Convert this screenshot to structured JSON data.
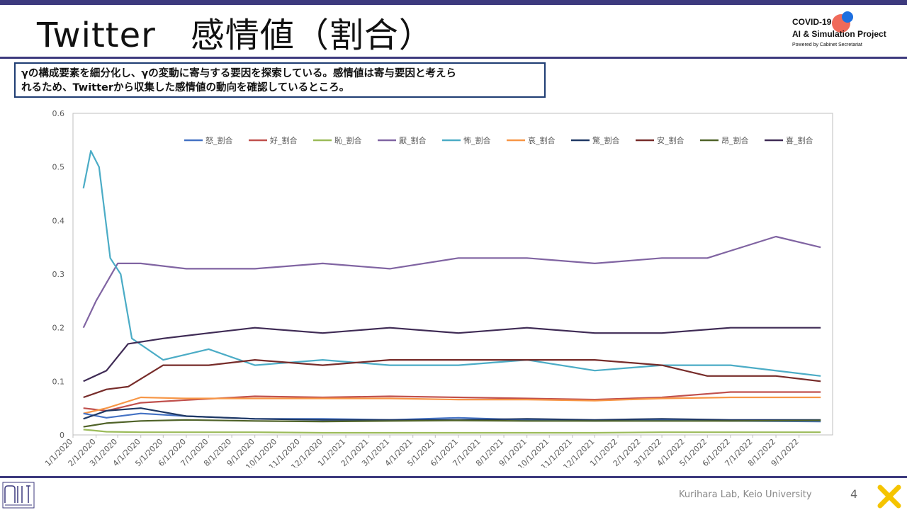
{
  "slide": {
    "title": "Twitter　感情値（割合）",
    "logo": {
      "line1": "COVID-19",
      "line2": "AI & Simulation Project",
      "line3": "Powered by Cabinet Secretariat"
    },
    "callout_line1": "γの構成要素を細分化し、γの変動に寄与する要因を探索している。感情値は寄与要因と考えら",
    "callout_line2": "れるため、Twitterから収集した感情値の動向を確認しているところ。",
    "footer": "Kurihara Lab, Keio University",
    "page_number": "4"
  },
  "colors": {
    "frame": "#3d3a7e",
    "callout_border": "#1f3d73"
  },
  "icons": [
    "lab-logo-icon",
    "corner-x-icon"
  ],
  "chart_data": {
    "type": "line",
    "ylim": [
      0,
      0.6
    ],
    "yticks": [
      "0",
      "0.1",
      "0.2",
      "0.3",
      "0.4",
      "0.5",
      "0.6"
    ],
    "x_ticks": [
      "1/1/2020",
      "2/1/2020",
      "3/1/2020",
      "4/1/2020",
      "5/1/2020",
      "6/1/2020",
      "7/1/2020",
      "8/1/2020",
      "9/1/2020",
      "10/1/2020",
      "11/1/2020",
      "12/1/2020",
      "1/1/2021",
      "2/1/2021",
      "3/1/2021",
      "4/1/2021",
      "5/1/2021",
      "6/1/2021",
      "7/1/2021",
      "8/1/2021",
      "9/1/2021",
      "10/1/2021",
      "11/1/2021",
      "12/1/2021",
      "1/1/2022",
      "2/1/2022",
      "3/1/2022",
      "4/1/2022",
      "5/1/2022",
      "6/1/2022",
      "7/1/2022",
      "8/1/2022",
      "9/1/2022"
    ],
    "legend_position": "top",
    "grid": false,
    "series": [
      {
        "name": "怒_割合",
        "color": "#4472c4",
        "x": [
          "2020-01-15",
          "2020-02-15",
          "2020-04-01",
          "2020-06-01",
          "2020-09-01",
          "2020-12-01",
          "2021-03-01",
          "2021-06-01",
          "2021-09-01",
          "2021-12-01",
          "2022-03-01",
          "2022-06-01",
          "2022-09-30"
        ],
        "y": [
          0.04,
          0.032,
          0.04,
          0.035,
          0.03,
          0.03,
          0.028,
          0.032,
          0.028,
          0.026,
          0.028,
          0.026,
          0.025
        ]
      },
      {
        "name": "好_割合",
        "color": "#c0504d",
        "x": [
          "2020-01-15",
          "2020-02-15",
          "2020-04-01",
          "2020-06-01",
          "2020-09-01",
          "2020-12-01",
          "2021-03-01",
          "2021-06-01",
          "2021-09-01",
          "2021-12-01",
          "2022-03-01",
          "2022-06-01",
          "2022-09-30"
        ],
        "y": [
          0.05,
          0.045,
          0.06,
          0.065,
          0.072,
          0.07,
          0.072,
          0.07,
          0.068,
          0.066,
          0.07,
          0.08,
          0.08
        ]
      },
      {
        "name": "恥_割合",
        "color": "#9bbb59",
        "x": [
          "2020-01-15",
          "2020-02-15",
          "2020-04-01",
          "2020-06-01",
          "2020-09-01",
          "2020-12-01",
          "2021-03-01",
          "2021-06-01",
          "2021-09-01",
          "2021-12-01",
          "2022-03-01",
          "2022-06-01",
          "2022-09-30"
        ],
        "y": [
          0.01,
          0.006,
          0.005,
          0.005,
          0.005,
          0.004,
          0.004,
          0.004,
          0.004,
          0.004,
          0.005,
          0.005,
          0.005
        ]
      },
      {
        "name": "厭_割合",
        "color": "#8064a2",
        "x": [
          "2020-01-15",
          "2020-02-01",
          "2020-03-01",
          "2020-04-01",
          "2020-06-01",
          "2020-09-01",
          "2020-12-01",
          "2021-03-01",
          "2021-06-01",
          "2021-09-01",
          "2021-12-01",
          "2022-03-01",
          "2022-05-01",
          "2022-08-01",
          "2022-09-30"
        ],
        "y": [
          0.2,
          0.25,
          0.32,
          0.32,
          0.31,
          0.31,
          0.32,
          0.31,
          0.33,
          0.33,
          0.32,
          0.33,
          0.33,
          0.37,
          0.35
        ]
      },
      {
        "name": "怖_割合",
        "color": "#4bacc6",
        "x": [
          "2020-01-15",
          "2020-01-25",
          "2020-02-05",
          "2020-02-20",
          "2020-03-05",
          "2020-03-20",
          "2020-05-01",
          "2020-07-01",
          "2020-09-01",
          "2020-12-01",
          "2021-03-01",
          "2021-06-01",
          "2021-09-01",
          "2021-12-01",
          "2022-03-01",
          "2022-06-01",
          "2022-09-30"
        ],
        "y": [
          0.46,
          0.53,
          0.5,
          0.33,
          0.3,
          0.18,
          0.14,
          0.16,
          0.13,
          0.14,
          0.13,
          0.13,
          0.14,
          0.12,
          0.13,
          0.13,
          0.11
        ]
      },
      {
        "name": "哀_割合",
        "color": "#f79646",
        "x": [
          "2020-01-15",
          "2020-02-15",
          "2020-04-01",
          "2020-06-01",
          "2020-09-01",
          "2020-12-01",
          "2021-03-01",
          "2021-06-01",
          "2021-09-01",
          "2021-12-01",
          "2022-03-01",
          "2022-06-01",
          "2022-09-30"
        ],
        "y": [
          0.04,
          0.05,
          0.07,
          0.068,
          0.068,
          0.068,
          0.068,
          0.066,
          0.066,
          0.064,
          0.068,
          0.07,
          0.07
        ]
      },
      {
        "name": "驚_割合",
        "color": "#1f3864",
        "x": [
          "2020-01-15",
          "2020-02-15",
          "2020-04-01",
          "2020-06-01",
          "2020-09-01",
          "2020-12-01",
          "2021-03-01",
          "2021-06-01",
          "2021-09-01",
          "2021-12-01",
          "2022-03-01",
          "2022-06-01",
          "2022-09-30"
        ],
        "y": [
          0.03,
          0.045,
          0.05,
          0.035,
          0.03,
          0.028,
          0.028,
          0.028,
          0.03,
          0.028,
          0.03,
          0.028,
          0.028
        ]
      },
      {
        "name": "安_割合",
        "color": "#772c2a",
        "x": [
          "2020-01-15",
          "2020-02-15",
          "2020-03-15",
          "2020-05-01",
          "2020-07-01",
          "2020-09-01",
          "2020-12-01",
          "2021-03-01",
          "2021-06-01",
          "2021-09-01",
          "2021-12-01",
          "2022-03-01",
          "2022-05-01",
          "2022-08-01",
          "2022-09-30"
        ],
        "y": [
          0.07,
          0.085,
          0.09,
          0.13,
          0.13,
          0.14,
          0.13,
          0.14,
          0.14,
          0.14,
          0.14,
          0.13,
          0.11,
          0.11,
          0.1
        ]
      },
      {
        "name": "昂_割合",
        "color": "#4f6228",
        "x": [
          "2020-01-15",
          "2020-02-15",
          "2020-04-01",
          "2020-06-01",
          "2020-09-01",
          "2020-12-01",
          "2021-03-01",
          "2021-06-01",
          "2021-09-01",
          "2021-12-01",
          "2022-03-01",
          "2022-06-01",
          "2022-09-30"
        ],
        "y": [
          0.015,
          0.022,
          0.026,
          0.028,
          0.026,
          0.025,
          0.026,
          0.027,
          0.026,
          0.026,
          0.026,
          0.026,
          0.027
        ]
      },
      {
        "name": "喜_割合",
        "color": "#3f2b55",
        "x": [
          "2020-01-15",
          "2020-02-15",
          "2020-03-15",
          "2020-05-01",
          "2020-07-01",
          "2020-09-01",
          "2020-12-01",
          "2021-03-01",
          "2021-06-01",
          "2021-09-01",
          "2021-12-01",
          "2022-03-01",
          "2022-06-01",
          "2022-09-30"
        ],
        "y": [
          0.1,
          0.12,
          0.17,
          0.18,
          0.19,
          0.2,
          0.19,
          0.2,
          0.19,
          0.2,
          0.19,
          0.19,
          0.2,
          0.2
        ]
      }
    ]
  }
}
